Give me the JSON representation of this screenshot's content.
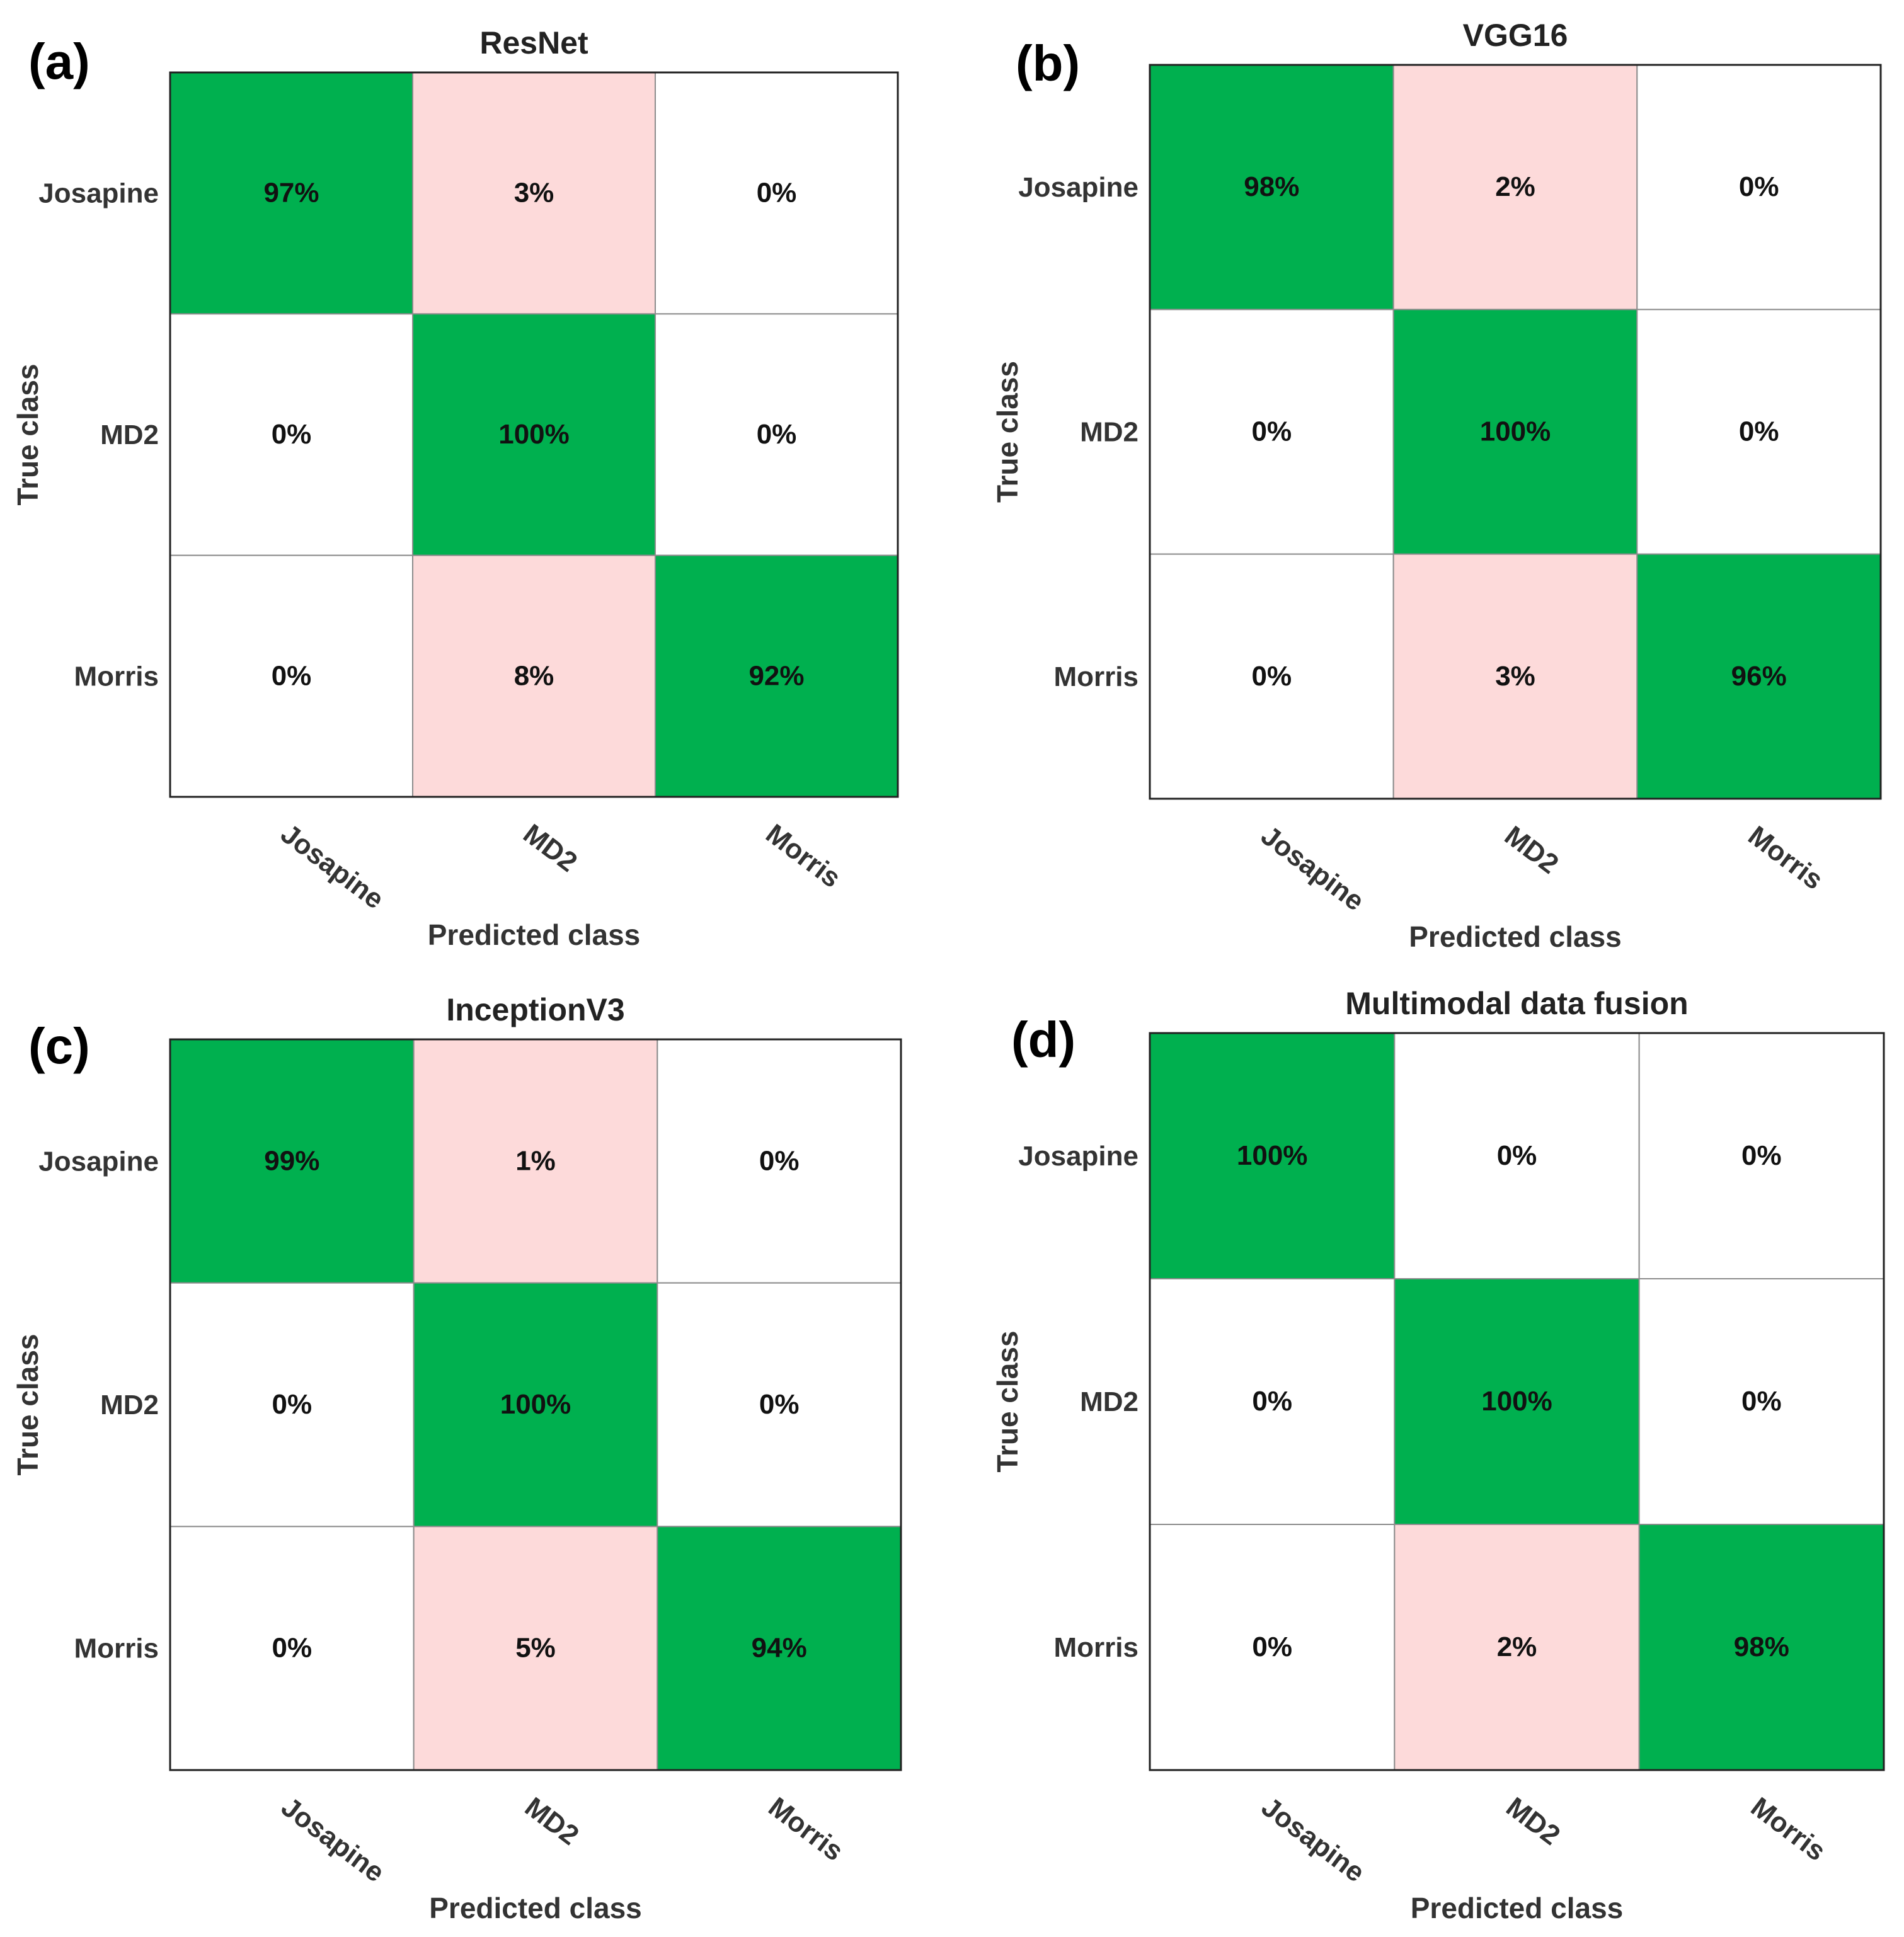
{
  "colors": {
    "diag": "#00b04f",
    "error": "#fddada",
    "zero": "#ffffff"
  },
  "chart_data": [
    {
      "type": "heatmap",
      "panel": "(a)",
      "title": "ResNet",
      "xlabel": "Predicted class",
      "ylabel": "True class",
      "rows": [
        "Josapine",
        "MD2",
        "Morris"
      ],
      "cols": [
        "Josapine",
        "MD2",
        "Morris"
      ],
      "values": [
        [
          97,
          3,
          0
        ],
        [
          0,
          100,
          0
        ],
        [
          0,
          8,
          92
        ]
      ],
      "labels": [
        [
          "97%",
          "3%",
          "0%"
        ],
        [
          "0%",
          "100%",
          "0%"
        ],
        [
          "0%",
          "8%",
          "92%"
        ]
      ]
    },
    {
      "type": "heatmap",
      "panel": "(b)",
      "title": "VGG16",
      "xlabel": "Predicted class",
      "ylabel": "True class",
      "rows": [
        "Josapine",
        "MD2",
        "Morris"
      ],
      "cols": [
        "Josapine",
        "MD2",
        "Morris"
      ],
      "values": [
        [
          98,
          2,
          0
        ],
        [
          0,
          100,
          0
        ],
        [
          0,
          3,
          96
        ]
      ],
      "labels": [
        [
          "98%",
          "2%",
          "0%"
        ],
        [
          "0%",
          "100%",
          "0%"
        ],
        [
          "0%",
          "3%",
          "96%"
        ]
      ]
    },
    {
      "type": "heatmap",
      "panel": "(c)",
      "title": "InceptionV3",
      "xlabel": "Predicted class",
      "ylabel": "True class",
      "rows": [
        "Josapine",
        "MD2",
        "Morris"
      ],
      "cols": [
        "Josapine",
        "MD2",
        "Morris"
      ],
      "values": [
        [
          99,
          1,
          0
        ],
        [
          0,
          100,
          0
        ],
        [
          0,
          5,
          94
        ]
      ],
      "labels": [
        [
          "99%",
          "1%",
          "0%"
        ],
        [
          "0%",
          "100%",
          "0%"
        ],
        [
          "0%",
          "5%",
          "94%"
        ]
      ]
    },
    {
      "type": "heatmap",
      "panel": "(d)",
      "title": "Multimodal data fusion",
      "xlabel": "Predicted class",
      "ylabel": "True class",
      "rows": [
        "Josapine",
        "MD2",
        "Morris"
      ],
      "cols": [
        "Josapine",
        "MD2",
        "Morris"
      ],
      "values": [
        [
          100,
          0,
          0
        ],
        [
          0,
          100,
          0
        ],
        [
          0,
          2,
          98
        ]
      ],
      "labels": [
        [
          "100%",
          "0%",
          "0%"
        ],
        [
          "0%",
          "100%",
          "0%"
        ],
        [
          "0%",
          "2%",
          "98%"
        ]
      ]
    }
  ]
}
